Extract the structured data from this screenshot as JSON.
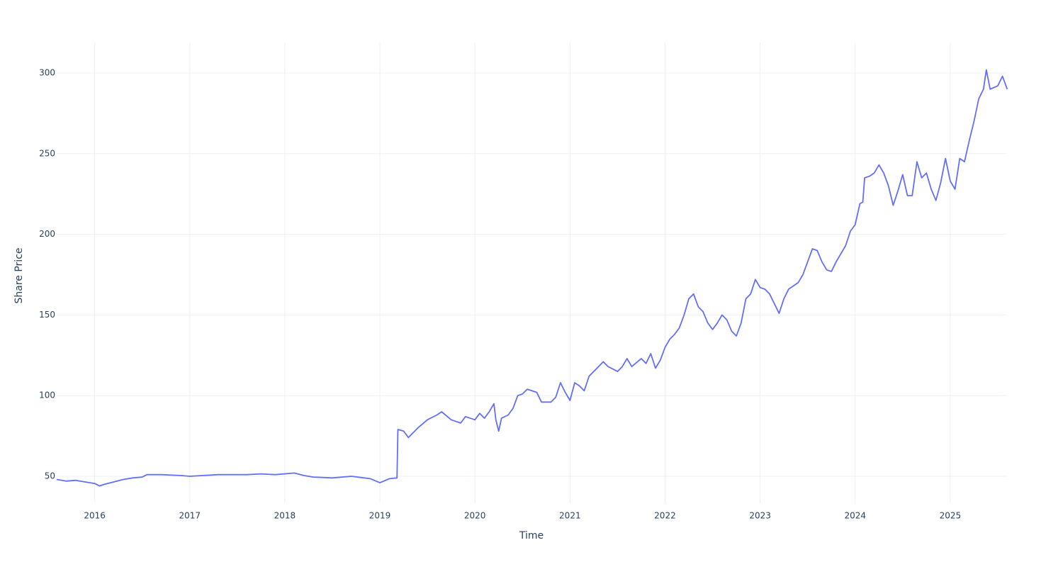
{
  "chart_data": {
    "type": "line",
    "xlabel": "Time",
    "ylabel": "Share Price",
    "color": "#636efa",
    "grid": true,
    "xlim": [
      2015.6,
      2025.59
    ],
    "xticks": [
      2016,
      2017,
      2018,
      2019,
      2020,
      2021,
      2022,
      2023,
      2024,
      2025
    ],
    "ylim": [
      33.3,
      318.9
    ],
    "yticks": [
      50,
      100,
      150,
      200,
      250,
      300
    ],
    "x": [
      2015.6,
      2015.7,
      2015.8,
      2015.9,
      2016.0,
      2016.05,
      2016.1,
      2016.2,
      2016.3,
      2016.4,
      2016.5,
      2016.55,
      2016.7,
      2016.9,
      2017.0,
      2017.3,
      2017.6,
      2017.75,
      2017.9,
      2018.1,
      2018.2,
      2018.3,
      2018.5,
      2018.7,
      2018.9,
      2019.0,
      2019.1,
      2019.18,
      2019.19,
      2019.25,
      2019.3,
      2019.4,
      2019.5,
      2019.6,
      2019.65,
      2019.75,
      2019.85,
      2019.9,
      2020.0,
      2020.05,
      2020.1,
      2020.15,
      2020.2,
      2020.22,
      2020.25,
      2020.28,
      2020.35,
      2020.4,
      2020.45,
      2020.5,
      2020.55,
      2020.65,
      2020.7,
      2020.8,
      2020.85,
      2020.9,
      2020.95,
      2021.0,
      2021.05,
      2021.1,
      2021.15,
      2021.2,
      2021.3,
      2021.35,
      2021.4,
      2021.5,
      2021.55,
      2021.6,
      2021.65,
      2021.75,
      2021.8,
      2021.85,
      2021.9,
      2021.95,
      2022.0,
      2022.05,
      2022.1,
      2022.15,
      2022.2,
      2022.25,
      2022.3,
      2022.35,
      2022.4,
      2022.45,
      2022.5,
      2022.55,
      2022.6,
      2022.65,
      2022.7,
      2022.75,
      2022.8,
      2022.85,
      2022.9,
      2022.95,
      2023.0,
      2023.05,
      2023.1,
      2023.15,
      2023.2,
      2023.25,
      2023.3,
      2023.4,
      2023.45,
      2023.5,
      2023.55,
      2023.6,
      2023.65,
      2023.7,
      2023.75,
      2023.8,
      2023.85,
      2023.9,
      2023.95,
      2024.0,
      2024.05,
      2024.08,
      2024.1,
      2024.15,
      2024.2,
      2024.25,
      2024.3,
      2024.35,
      2024.4,
      2024.45,
      2024.5,
      2024.55,
      2024.6,
      2024.65,
      2024.7,
      2024.75,
      2024.8,
      2024.85,
      2024.9,
      2024.95,
      2025.0,
      2025.05,
      2025.1,
      2025.15,
      2025.2,
      2025.25,
      2025.3,
      2025.35,
      2025.38,
      2025.42,
      2025.5,
      2025.55,
      2025.6
    ],
    "values": [
      48,
      47,
      47.5,
      46.5,
      45.5,
      44,
      45,
      46.5,
      48,
      49,
      49.5,
      51,
      51,
      50.5,
      50,
      51,
      51,
      51.5,
      51,
      52,
      50.5,
      49.5,
      49,
      50,
      48.5,
      46,
      48.5,
      49,
      79,
      78,
      74,
      80,
      85,
      88,
      90,
      85,
      83,
      87,
      85,
      89,
      86,
      90,
      95,
      85,
      78,
      86,
      88,
      92,
      100,
      101,
      104,
      102,
      96,
      96,
      99,
      108,
      102,
      97,
      108,
      106,
      103,
      112,
      118,
      121,
      118,
      115,
      118,
      123,
      118,
      123,
      120,
      126,
      117,
      122,
      130,
      135,
      138,
      142,
      150,
      160,
      163,
      155,
      152,
      145,
      141,
      145,
      150,
      147,
      140,
      137,
      145,
      160,
      163,
      172,
      167,
      166,
      163,
      157,
      151,
      160,
      166,
      170,
      175,
      183,
      191,
      190,
      183,
      178,
      177,
      183,
      188,
      193,
      202,
      206,
      219,
      220,
      235,
      236,
      238,
      243,
      238,
      230,
      218,
      227,
      237,
      224,
      224,
      245,
      235,
      238,
      228,
      221,
      232,
      247,
      233,
      228,
      247,
      245,
      258,
      270,
      284,
      290,
      302,
      290,
      292,
      298,
      290
    ]
  }
}
